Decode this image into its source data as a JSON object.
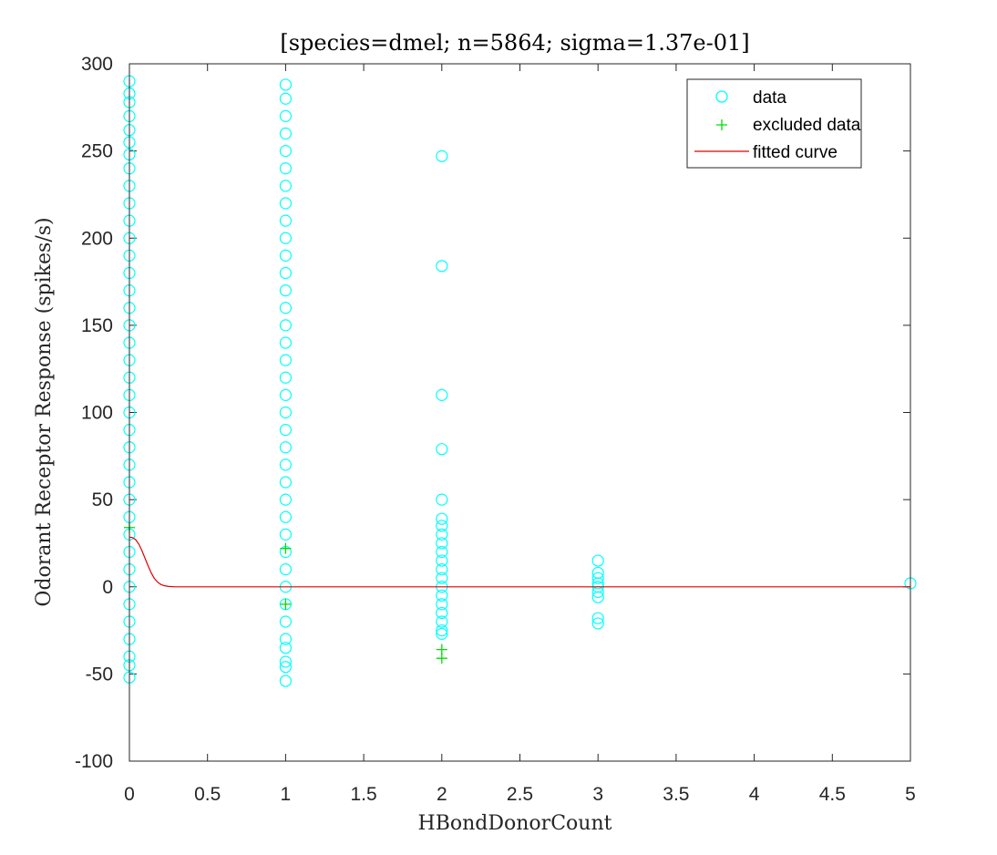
{
  "chart_data": {
    "type": "scatter",
    "title": "[species=dmel; n=5864; sigma=1.37e-01]",
    "xlabel": "HBondDonorCount",
    "ylabel": "Odorant Receptor Response (spikes/s)",
    "xlim": [
      0,
      5
    ],
    "ylim": [
      -100,
      300
    ],
    "xticks": [
      "0",
      "0.5",
      "1",
      "1.5",
      "2",
      "2.5",
      "3",
      "3.5",
      "4",
      "4.5",
      "5"
    ],
    "yticks": [
      "300",
      "250",
      "200",
      "150",
      "100",
      "50",
      "0",
      "-50",
      "-100"
    ],
    "grid": false,
    "legend_position": "top-right",
    "colors": {
      "data": "#00FFFF",
      "excluded": "#00DD00",
      "curve": "#E00000"
    },
    "series": [
      {
        "name": "data",
        "marker": "circle",
        "points": [
          [
            0,
            290
          ],
          [
            0,
            283
          ],
          [
            0,
            278
          ],
          [
            0,
            270
          ],
          [
            0,
            262
          ],
          [
            0,
            255
          ],
          [
            0,
            248
          ],
          [
            0,
            240
          ],
          [
            0,
            230
          ],
          [
            0,
            220
          ],
          [
            0,
            210
          ],
          [
            0,
            200
          ],
          [
            0,
            190
          ],
          [
            0,
            180
          ],
          [
            0,
            170
          ],
          [
            0,
            160
          ],
          [
            0,
            150
          ],
          [
            0,
            140
          ],
          [
            0,
            130
          ],
          [
            0,
            120
          ],
          [
            0,
            110
          ],
          [
            0,
            100
          ],
          [
            0,
            90
          ],
          [
            0,
            80
          ],
          [
            0,
            70
          ],
          [
            0,
            60
          ],
          [
            0,
            50
          ],
          [
            0,
            40
          ],
          [
            0,
            30
          ],
          [
            0,
            20
          ],
          [
            0,
            10
          ],
          [
            0,
            0
          ],
          [
            0,
            -10
          ],
          [
            0,
            -20
          ],
          [
            0,
            -30
          ],
          [
            0,
            -40
          ],
          [
            0,
            -45
          ],
          [
            0,
            -52
          ],
          [
            1,
            288
          ],
          [
            1,
            280
          ],
          [
            1,
            270
          ],
          [
            1,
            260
          ],
          [
            1,
            250
          ],
          [
            1,
            240
          ],
          [
            1,
            230
          ],
          [
            1,
            220
          ],
          [
            1,
            210
          ],
          [
            1,
            200
          ],
          [
            1,
            190
          ],
          [
            1,
            180
          ],
          [
            1,
            170
          ],
          [
            1,
            160
          ],
          [
            1,
            150
          ],
          [
            1,
            140
          ],
          [
            1,
            130
          ],
          [
            1,
            120
          ],
          [
            1,
            110
          ],
          [
            1,
            100
          ],
          [
            1,
            90
          ],
          [
            1,
            80
          ],
          [
            1,
            70
          ],
          [
            1,
            60
          ],
          [
            1,
            50
          ],
          [
            1,
            40
          ],
          [
            1,
            30
          ],
          [
            1,
            20
          ],
          [
            1,
            10
          ],
          [
            1,
            0
          ],
          [
            1,
            -10
          ],
          [
            1,
            -20
          ],
          [
            1,
            -30
          ],
          [
            1,
            -35
          ],
          [
            1,
            -43
          ],
          [
            1,
            -46
          ],
          [
            1,
            -54
          ],
          [
            2,
            247
          ],
          [
            2,
            184
          ],
          [
            2,
            110
          ],
          [
            2,
            79
          ],
          [
            2,
            50
          ],
          [
            2,
            39
          ],
          [
            2,
            35
          ],
          [
            2,
            30
          ],
          [
            2,
            25
          ],
          [
            2,
            20
          ],
          [
            2,
            15
          ],
          [
            2,
            10
          ],
          [
            2,
            5
          ],
          [
            2,
            0
          ],
          [
            2,
            -5
          ],
          [
            2,
            -10
          ],
          [
            2,
            -15
          ],
          [
            2,
            -20
          ],
          [
            2,
            -25
          ],
          [
            2,
            -27
          ],
          [
            3,
            15
          ],
          [
            3,
            8
          ],
          [
            3,
            5
          ],
          [
            3,
            2
          ],
          [
            3,
            0
          ],
          [
            3,
            -3
          ],
          [
            3,
            -6
          ],
          [
            3,
            -18
          ],
          [
            3,
            -21
          ],
          [
            5,
            2
          ]
        ]
      },
      {
        "name": "excluded data",
        "marker": "plus",
        "points": [
          [
            0,
            34
          ],
          [
            1,
            22
          ],
          [
            1,
            -10
          ],
          [
            2,
            -36
          ],
          [
            2,
            -41
          ]
        ]
      },
      {
        "name": "fitted curve",
        "marker": "line",
        "points": [
          [
            0,
            28.5
          ],
          [
            0.02,
            28.2
          ],
          [
            0.04,
            27.0
          ],
          [
            0.06,
            24.5
          ],
          [
            0.08,
            20.8
          ],
          [
            0.1,
            16.4
          ],
          [
            0.12,
            11.9
          ],
          [
            0.14,
            7.9
          ],
          [
            0.16,
            4.8
          ],
          [
            0.18,
            2.7
          ],
          [
            0.2,
            1.4
          ],
          [
            0.22,
            0.7
          ],
          [
            0.25,
            0.2
          ],
          [
            0.3,
            0.0
          ],
          [
            0.5,
            0.0
          ],
          [
            1,
            0.0
          ],
          [
            2,
            0.0
          ],
          [
            3,
            0.0
          ],
          [
            4,
            0.0
          ],
          [
            5,
            0.0
          ]
        ]
      }
    ]
  }
}
